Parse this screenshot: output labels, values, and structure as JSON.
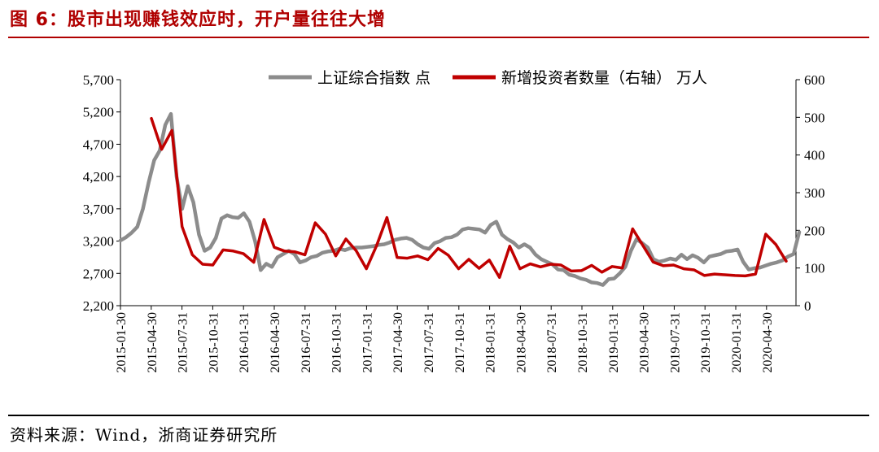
{
  "title": "图 6：股市出现赚钱效应时，开户量往往大增",
  "source": "资料来源：Wind，浙商证券研究所",
  "colors": {
    "title": "#b00000",
    "index_line": "#8c8c8c",
    "accounts_line": "#c00000"
  },
  "chart_data": {
    "type": "line",
    "title": "股市出现赚钱效应时，开户量往往大增",
    "legend_position": "top-right",
    "legend": [
      "上证综合指数 点",
      "新增投资者数量（右轴） 万人"
    ],
    "left_axis": {
      "min": 2200,
      "max": 5700,
      "ticks": [
        "2,200",
        "2,700",
        "3,200",
        "3,700",
        "4,200",
        "4,700",
        "5,200",
        "5,700"
      ],
      "tick_values": [
        2200,
        2700,
        3200,
        3700,
        4200,
        4700,
        5200,
        5700
      ]
    },
    "right_axis": {
      "min": 0,
      "max": 600,
      "ticks": [
        "0",
        "100",
        "200",
        "300",
        "400",
        "500",
        "600"
      ],
      "tick_values": [
        0,
        100,
        200,
        300,
        400,
        500,
        600
      ]
    },
    "x_axis": {
      "ticks": [
        "2015-01-30",
        "2015-04-30",
        "2015-07-31",
        "2015-10-31",
        "2016-01-31",
        "2016-04-30",
        "2016-07-31",
        "2016-10-31",
        "2017-01-31",
        "2017-04-30",
        "2017-07-31",
        "2017-10-31",
        "2018-01-31",
        "2018-04-30",
        "2018-07-31",
        "2018-10-31",
        "2019-01-31",
        "2019-04-30",
        "2019-07-31",
        "2019-10-31",
        "2020-01-31",
        "2020-04-30"
      ]
    },
    "series": [
      {
        "name": "上证综合指数 点",
        "axis": "left",
        "unit": "点",
        "values": [
          3210,
          3260,
          3330,
          3420,
          3700,
          4100,
          4450,
          4600,
          5000,
          5170,
          4200,
          3700,
          4050,
          3800,
          3300,
          3050,
          3100,
          3250,
          3550,
          3600,
          3570,
          3560,
          3630,
          3500,
          3200,
          2750,
          2850,
          2800,
          2950,
          3000,
          3050,
          3000,
          2870,
          2900,
          2950,
          2970,
          3020,
          3040,
          3050,
          3080,
          3060,
          3090,
          3100,
          3100,
          3110,
          3120,
          3140,
          3150,
          3180,
          3220,
          3240,
          3250,
          3220,
          3150,
          3100,
          3080,
          3170,
          3200,
          3250,
          3260,
          3300,
          3380,
          3400,
          3390,
          3380,
          3330,
          3450,
          3500,
          3300,
          3230,
          3180,
          3100,
          3150,
          3100,
          2990,
          2920,
          2880,
          2840,
          2760,
          2750,
          2680,
          2660,
          2620,
          2600,
          2560,
          2550,
          2520,
          2610,
          2620,
          2700,
          2800,
          3050,
          3230,
          3170,
          3100,
          2920,
          2880,
          2900,
          2930,
          2910,
          2990,
          2920,
          2980,
          2940,
          2870,
          2960,
          2980,
          3000,
          3040,
          3050,
          3070,
          2880,
          2760,
          2780,
          2790,
          2820,
          2850,
          2870,
          2900,
          2960,
          3000,
          3340
        ]
      },
      {
        "name": "新增投资者数量（右轴） 万人",
        "axis": "right",
        "unit": "万人",
        "values": [
          497,
          415,
          465,
          210,
          135,
          110,
          108,
          148,
          145,
          138,
          115,
          229,
          155,
          145,
          143,
          135,
          220,
          190,
          132,
          177,
          146,
          98,
          160,
          234,
          128,
          126,
          132,
          122,
          152,
          134,
          98,
          123,
          99,
          121,
          75,
          158,
          98,
          111,
          103,
          110,
          108,
          92,
          93,
          107,
          89,
          104,
          100,
          204,
          160,
          116,
          106,
          108,
          98,
          95,
          80,
          84,
          82,
          80,
          79,
          84,
          190,
          162,
          118
        ]
      }
    ]
  }
}
